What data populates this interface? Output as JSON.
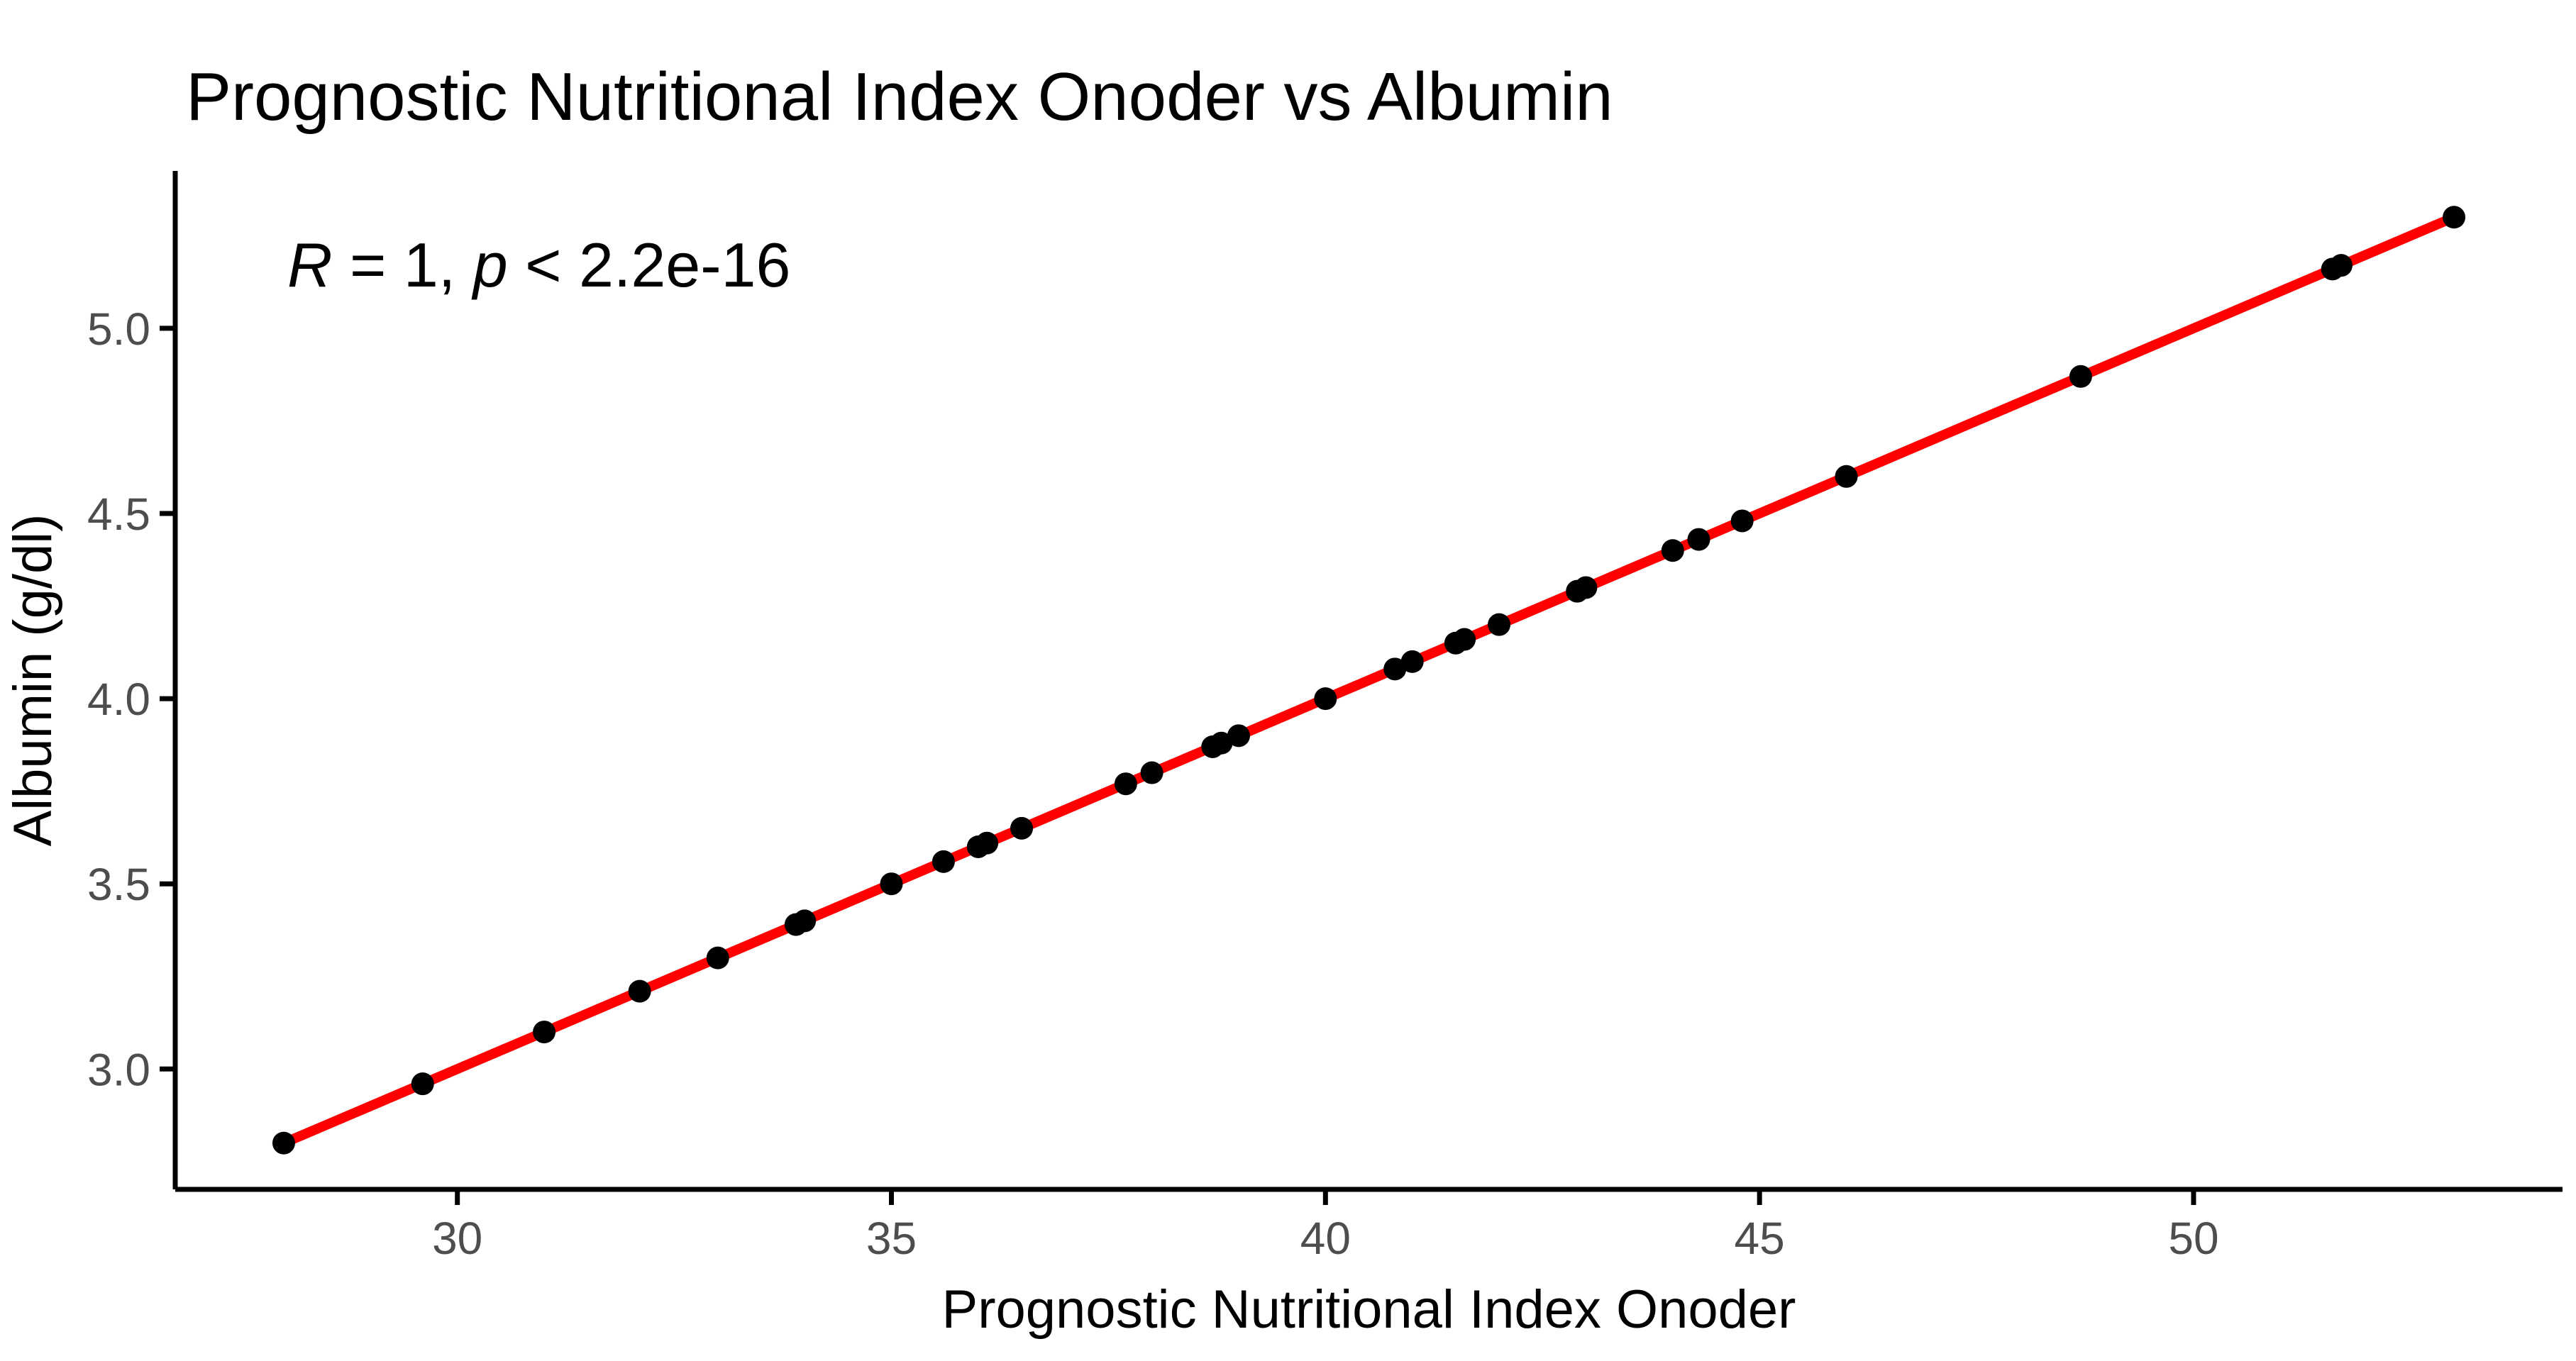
{
  "title": "Prognostic Nutritional Index Onoder vs Albumin",
  "annotation": {
    "text": "R = 1, p < 2.2e-16",
    "r_var": "R",
    "r_rest": " = 1, ",
    "p_var": "p",
    "p_rest": " < 2.2e-16"
  },
  "chart_data": {
    "type": "scatter",
    "title": "Prognostic Nutritional Index Onoder vs Albumin",
    "xlabel": "Prognostic Nutritional Index Onoder",
    "ylabel": "Albumin (g/dl)",
    "xlim": [
      26.75,
      54.25
    ],
    "ylim": [
      2.675,
      5.425
    ],
    "x_ticks": [
      30,
      35,
      40,
      45,
      50
    ],
    "x_tick_labels": [
      "30",
      "35",
      "40",
      "45",
      "50"
    ],
    "y_ticks": [
      3.0,
      3.5,
      4.0,
      4.5,
      5.0
    ],
    "y_tick_labels": [
      "3.0",
      "3.5",
      "4.0",
      "4.5",
      "5.0"
    ],
    "grid": false,
    "legend": false,
    "annotation": "R = 1, p < 2.2e-16",
    "point_color": "#000000",
    "line_color": "#FF0000",
    "series": [
      {
        "name": "observations",
        "type": "scatter",
        "color": "#000000",
        "points": [
          [
            28.0,
            2.8
          ],
          [
            29.6,
            2.96
          ],
          [
            31.0,
            3.1
          ],
          [
            32.1,
            3.21
          ],
          [
            33.0,
            3.3
          ],
          [
            33.9,
            3.39
          ],
          [
            34.0,
            3.4
          ],
          [
            35.0,
            3.5
          ],
          [
            35.6,
            3.56
          ],
          [
            36.0,
            3.6
          ],
          [
            36.1,
            3.61
          ],
          [
            36.5,
            3.65
          ],
          [
            37.7,
            3.77
          ],
          [
            38.0,
            3.8
          ],
          [
            38.7,
            3.87
          ],
          [
            38.8,
            3.88
          ],
          [
            39.0,
            3.9
          ],
          [
            40.0,
            4.0
          ],
          [
            40.8,
            4.08
          ],
          [
            41.0,
            4.1
          ],
          [
            41.5,
            4.15
          ],
          [
            41.6,
            4.16
          ],
          [
            42.0,
            4.2
          ],
          [
            42.9,
            4.29
          ],
          [
            43.0,
            4.3
          ],
          [
            44.0,
            4.4
          ],
          [
            44.3,
            4.43
          ],
          [
            44.8,
            4.48
          ],
          [
            46.0,
            4.6
          ],
          [
            48.7,
            4.87
          ],
          [
            51.6,
            5.16
          ],
          [
            51.7,
            5.17
          ],
          [
            53.0,
            5.3
          ]
        ]
      },
      {
        "name": "regression-line",
        "type": "line",
        "color": "#FF0000",
        "points": [
          [
            28.0,
            2.8
          ],
          [
            53.0,
            5.3
          ]
        ]
      }
    ]
  }
}
